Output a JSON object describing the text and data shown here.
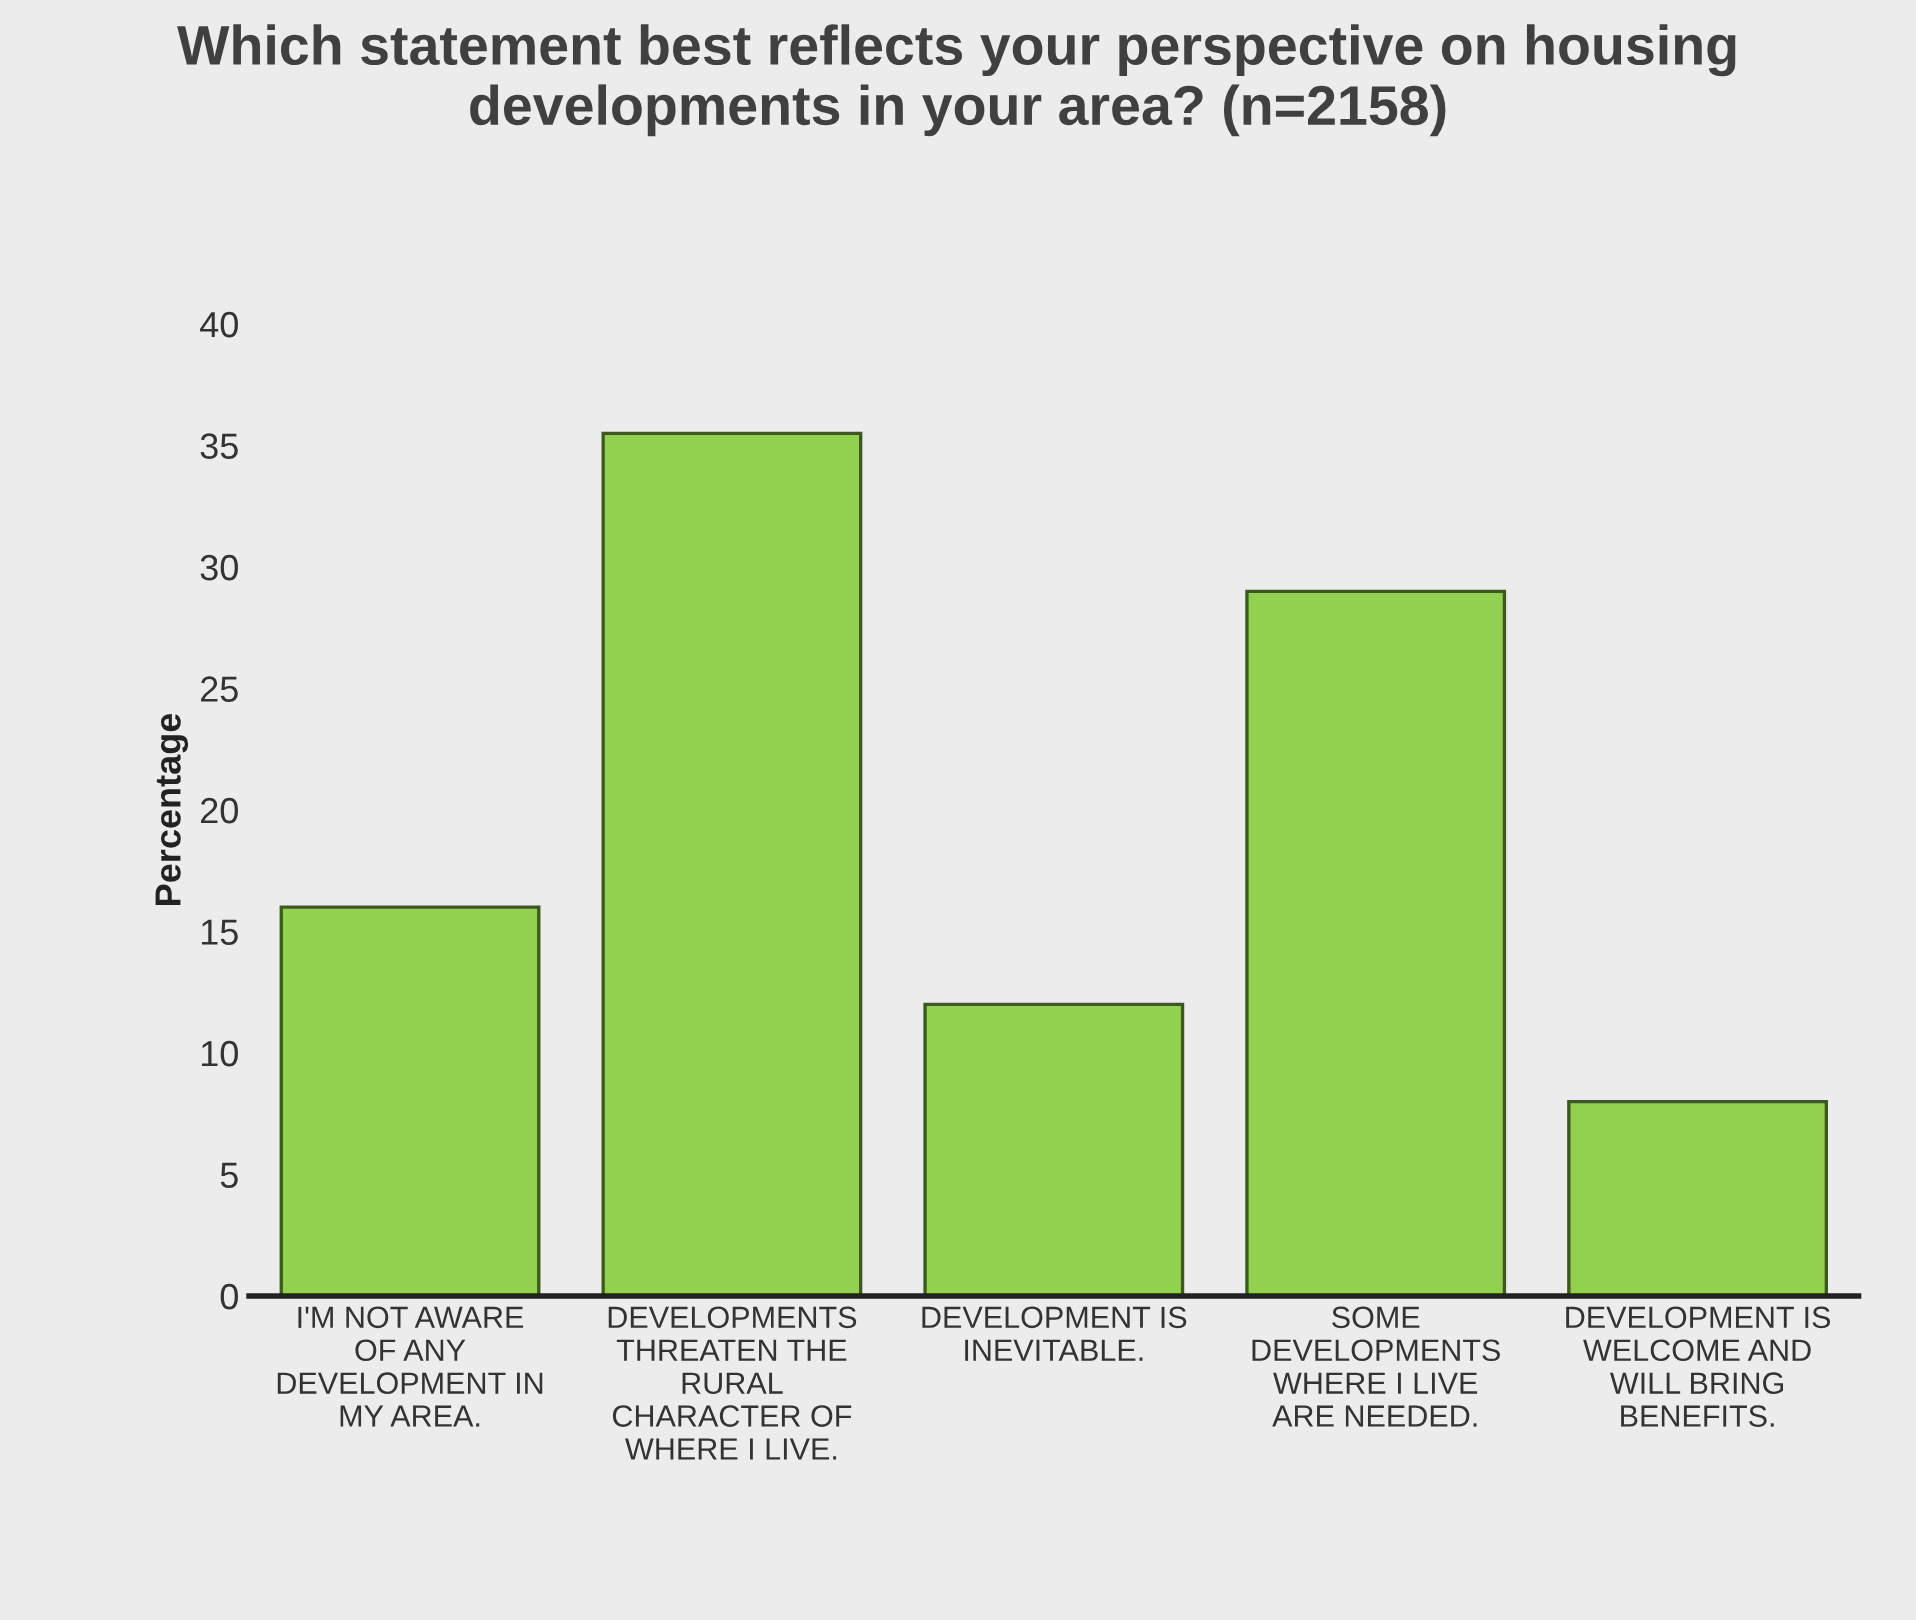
{
  "chart_data": {
    "type": "bar",
    "title": "Which statement best reflects your perspective on housing developments in your area? (n=2158)",
    "ylabel": "Percentage",
    "categories": [
      "I'M NOT AWARE OF ANY DEVELOPMENT IN MY AREA.",
      "DEVELOPMENTS THREATEN THE RURAL CHARACTER OF WHERE I LIVE.",
      "DEVELOPMENT IS INEVITABLE.",
      "SOME DEVELOPMENTS WHERE I LIVE ARE NEEDED.",
      "DEVELOPMENT IS WELCOME AND WILL BRING BENEFITS."
    ],
    "values": [
      16,
      35.5,
      12,
      29,
      8
    ],
    "color": "#92d050",
    "ylim": [
      0,
      40
    ],
    "yticks": [
      0,
      5,
      10,
      15,
      20,
      25,
      30,
      35,
      40
    ],
    "grid": false,
    "legend": false
  }
}
